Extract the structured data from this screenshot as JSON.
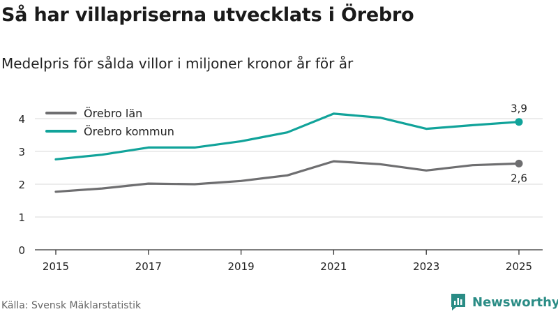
{
  "title": "Så har villapriserna utvecklats i Örebro",
  "subtitle": "Medelpris för sålda villor i miljoner kronor år för år",
  "source": "Källa: Svensk Mäklarstatistik",
  "brand": {
    "name": "Newsworthy",
    "color": "#2a8c85",
    "icon": "newsworthy-logo-icon"
  },
  "chart_data": {
    "type": "line",
    "title": "Så har villapriserna utvecklats i Örebro",
    "subtitle": "Medelpris för sålda villor i miljoner kronor år för år",
    "xlabel": "",
    "ylabel": "",
    "x": [
      2015,
      2016,
      2017,
      2018,
      2019,
      2020,
      2021,
      2022,
      2023,
      2024,
      2025
    ],
    "xticks": [
      2015,
      2017,
      2019,
      2021,
      2023,
      2025
    ],
    "xlim": [
      2015,
      2025
    ],
    "yticks": [
      0,
      1,
      2,
      3,
      4
    ],
    "ylim": [
      0,
      4.3
    ],
    "grid": true,
    "legend": "top-left",
    "series": [
      {
        "name": "Örebro län",
        "color": "#6e6e70",
        "values": [
          1.77,
          1.87,
          2.02,
          2.0,
          2.1,
          2.27,
          2.7,
          2.61,
          2.42,
          2.58,
          2.63
        ],
        "end_label": "2,6",
        "end_label_position": "below"
      },
      {
        "name": "Örebro kommun",
        "color": "#11a39a",
        "values": [
          2.76,
          2.9,
          3.12,
          3.12,
          3.31,
          3.58,
          4.15,
          4.03,
          3.69,
          3.8,
          3.9
        ],
        "end_label": "3,9",
        "end_label_position": "above"
      }
    ]
  }
}
